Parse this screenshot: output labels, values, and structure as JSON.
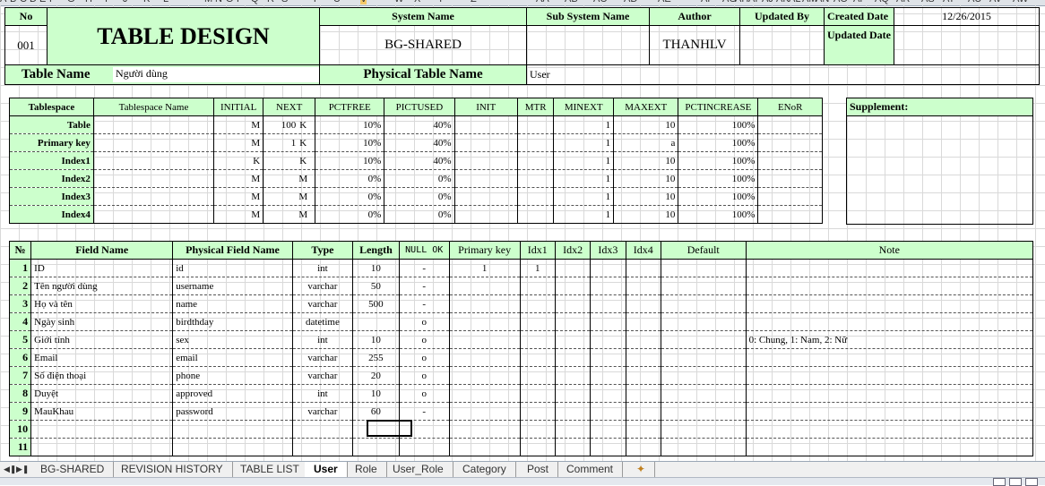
{
  "column_headers": [
    "A",
    "B",
    "C",
    "D",
    "E",
    "F",
    "G",
    "H",
    "I",
    "J",
    "K",
    "L",
    "M",
    "N",
    "O",
    "P",
    "Q",
    "R",
    "S",
    "T",
    "U",
    "V",
    "W",
    "X",
    "Y",
    "Z",
    "AA",
    "AB",
    "AC",
    "AD",
    "AE",
    "AF",
    "AG",
    "AH",
    "AI",
    "AJ",
    "AK",
    "AL",
    "AM",
    "AN",
    "AO",
    "AP",
    "AQ",
    "AR",
    "AS",
    "AT",
    "AU",
    "AV",
    "AW"
  ],
  "header": {
    "no_label": "No",
    "no_value": "001",
    "title": "TABLE DESIGN",
    "system_name_label": "System Name",
    "system_name": "BG-SHARED",
    "sub_system_label": "Sub System Name",
    "sub_system": "",
    "author_label": "Author",
    "author": "THANHLV",
    "updated_by_label": "Updated By",
    "updated_by": "",
    "created_date_label": "Created Date",
    "created_date": "12/26/2015",
    "updated_date_label": "Updated Date",
    "updated_date": ""
  },
  "table_name": {
    "label": "Table Name",
    "value": "Người dùng",
    "physical_label": "Physical Table Name",
    "physical_value": "User"
  },
  "tablespace": {
    "headers": [
      "Tablespace",
      "Tablespace Name",
      "INITIAL",
      "NEXT",
      "PCTFREE",
      "PICTUSED",
      "INIT",
      "MTR",
      "MINEXT",
      "MAXEXT",
      "PCTINCREASE",
      "ENoR"
    ],
    "rows": [
      {
        "name": "Table",
        "ts": "",
        "initial": "M",
        "next_n": "100",
        "next_u": "K",
        "pctfree": "10%",
        "pctused": "40%",
        "init": "",
        "mtr": "",
        "minext": "1",
        "maxext": "10",
        "pctinc": "100%",
        "enor": ""
      },
      {
        "name": "Primary key",
        "ts": "",
        "initial": "M",
        "next_n": "1",
        "next_u": "K",
        "pctfree": "10%",
        "pctused": "40%",
        "init": "",
        "mtr": "",
        "minext": "1",
        "maxext": "a",
        "pctinc": "100%",
        "enor": ""
      },
      {
        "name": "Index1",
        "ts": "",
        "initial": "K",
        "next_n": "",
        "next_u": "K",
        "pctfree": "10%",
        "pctused": "40%",
        "init": "",
        "mtr": "",
        "minext": "1",
        "maxext": "10",
        "pctinc": "100%",
        "enor": ""
      },
      {
        "name": "Index2",
        "ts": "",
        "initial": "M",
        "next_n": "",
        "next_u": "M",
        "pctfree": "0%",
        "pctused": "0%",
        "init": "",
        "mtr": "",
        "minext": "1",
        "maxext": "10",
        "pctinc": "100%",
        "enor": ""
      },
      {
        "name": "Index3",
        "ts": "",
        "initial": "M",
        "next_n": "",
        "next_u": "M",
        "pctfree": "0%",
        "pctused": "0%",
        "init": "",
        "mtr": "",
        "minext": "1",
        "maxext": "10",
        "pctinc": "100%",
        "enor": ""
      },
      {
        "name": "Index4",
        "ts": "",
        "initial": "M",
        "next_n": "",
        "next_u": "M",
        "pctfree": "0%",
        "pctused": "0%",
        "init": "",
        "mtr": "",
        "minext": "1",
        "maxext": "10",
        "pctinc": "100%",
        "enor": ""
      }
    ],
    "supplement_label": "Supplement:"
  },
  "fields": {
    "headers": [
      "№",
      "Field Name",
      "Physical Field Name",
      "Type",
      "Length",
      "NULL OK",
      "Primary key",
      "Idx1",
      "Idx2",
      "Idx3",
      "Idx4",
      "Default",
      "Note"
    ],
    "rows": [
      {
        "no": "1",
        "name": "ID",
        "phys": "id",
        "type": "int",
        "len": "10",
        "null": "-",
        "pk": "1",
        "idx1": "1",
        "note": ""
      },
      {
        "no": "2",
        "name": "Tên người dùng",
        "phys": "username",
        "type": "varchar",
        "len": "50",
        "null": "-",
        "pk": "",
        "idx1": "",
        "note": ""
      },
      {
        "no": "3",
        "name": "Họ và tên",
        "phys": "name",
        "type": "varchar",
        "len": "500",
        "null": "-",
        "pk": "",
        "idx1": "",
        "note": ""
      },
      {
        "no": "4",
        "name": "Ngày sinh",
        "phys": "birdthday",
        "type": "datetime",
        "len": "",
        "null": "o",
        "pk": "",
        "idx1": "",
        "note": ""
      },
      {
        "no": "5",
        "name": "Giới tính",
        "phys": "sex",
        "type": "int",
        "len": "10",
        "null": "o",
        "pk": "",
        "idx1": "",
        "note": "0: Chung, 1: Nam, 2: Nữ"
      },
      {
        "no": "6",
        "name": "Email",
        "phys": "email",
        "type": "varchar",
        "len": "255",
        "null": "o",
        "pk": "",
        "idx1": "",
        "note": ""
      },
      {
        "no": "7",
        "name": "Số điện thoại",
        "phys": "phone",
        "type": "varchar",
        "len": "20",
        "null": "o",
        "pk": "",
        "idx1": "",
        "note": ""
      },
      {
        "no": "8",
        "name": "Duyệt",
        "phys": "approved",
        "type": "int",
        "len": "10",
        "null": "o",
        "pk": "",
        "idx1": "",
        "note": ""
      },
      {
        "no": "9",
        "name": "MauKhau",
        "phys": "password",
        "type": "varchar",
        "len": "60",
        "null": "-",
        "pk": "",
        "idx1": "",
        "note": ""
      },
      {
        "no": "10",
        "name": "",
        "phys": "",
        "type": "",
        "len": "",
        "null": "",
        "pk": "",
        "idx1": "",
        "note": ""
      },
      {
        "no": "11",
        "name": "",
        "phys": "",
        "type": "",
        "len": "",
        "null": "",
        "pk": "",
        "idx1": "",
        "note": ""
      }
    ]
  },
  "tabs": [
    "BG-SHARED",
    "REVISION HISTORY",
    "TABLE LIST",
    "User",
    "Role",
    "User_Role",
    "Category",
    "Post",
    "Comment"
  ],
  "active_tab": "User",
  "colors": {
    "header_green": "#ccffcc",
    "selected_col": "#f5c96a"
  }
}
